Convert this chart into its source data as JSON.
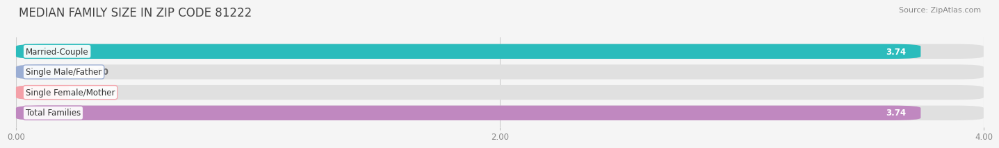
{
  "title": "MEDIAN FAMILY SIZE IN ZIP CODE 81222",
  "source": "Source: ZipAtlas.com",
  "categories": [
    "Married-Couple",
    "Single Male/Father",
    "Single Female/Mother",
    "Total Families"
  ],
  "values": [
    3.74,
    0.0,
    0.0,
    3.74
  ],
  "bar_colors": [
    "#2bbcbc",
    "#9baed4",
    "#f4a0a8",
    "#c088c0"
  ],
  "background_color": "#f5f5f5",
  "bar_background_color": "#e0e0e0",
  "xlim": [
    0,
    4.0
  ],
  "xticks": [
    0.0,
    2.0,
    4.0
  ],
  "xtick_labels": [
    "0.00",
    "2.00",
    "4.00"
  ],
  "bar_height": 0.72,
  "label_fontsize": 8.5,
  "title_fontsize": 12,
  "source_fontsize": 8,
  "value_fontsize": 8.5,
  "title_color": "#444444",
  "tick_color": "#888888",
  "label_bg_color": "#ffffff",
  "value_label_color": "#ffffff",
  "zero_value_label_color": "#666666"
}
